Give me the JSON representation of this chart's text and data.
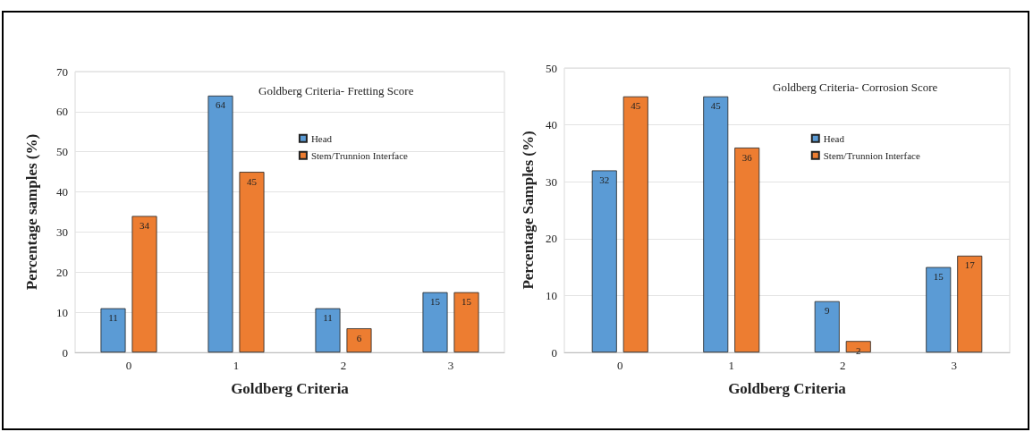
{
  "chart_data": [
    {
      "type": "bar",
      "title": "Goldberg Criteria- Fretting Score",
      "xlabel": "Goldberg Criteria",
      "ylabel": "Percentage samples (%)",
      "categories": [
        "0",
        "1",
        "2",
        "3"
      ],
      "series": [
        {
          "name": "Head",
          "color": "#5b9bd5",
          "values": [
            11,
            64,
            11,
            15
          ]
        },
        {
          "name": "Stem/Trunnion Interface",
          "color": "#ed7d31",
          "values": [
            34,
            45,
            6,
            15
          ]
        }
      ],
      "ylim": [
        0,
        70
      ],
      "yticks": [
        0,
        10,
        20,
        30,
        40,
        50,
        60,
        70
      ],
      "grid": "y",
      "legend": "top right",
      "data_labels": true
    },
    {
      "type": "bar",
      "title": "Goldberg Criteria- Corrosion Score",
      "xlabel": "Goldberg Criteria",
      "ylabel": "Percentage Samples (%)",
      "categories": [
        "0",
        "1",
        "2",
        "3"
      ],
      "series": [
        {
          "name": "Head",
          "color": "#5b9bd5",
          "values": [
            32,
            45,
            9,
            15
          ]
        },
        {
          "name": "Stem/Trunnion Interface",
          "color": "#ed7d31",
          "values": [
            45,
            36,
            2,
            17
          ]
        }
      ],
      "ylim": [
        0,
        50
      ],
      "yticks": [
        0,
        10,
        20,
        30,
        40,
        50
      ],
      "grid": "y",
      "legend": "top right",
      "data_labels": true
    }
  ]
}
